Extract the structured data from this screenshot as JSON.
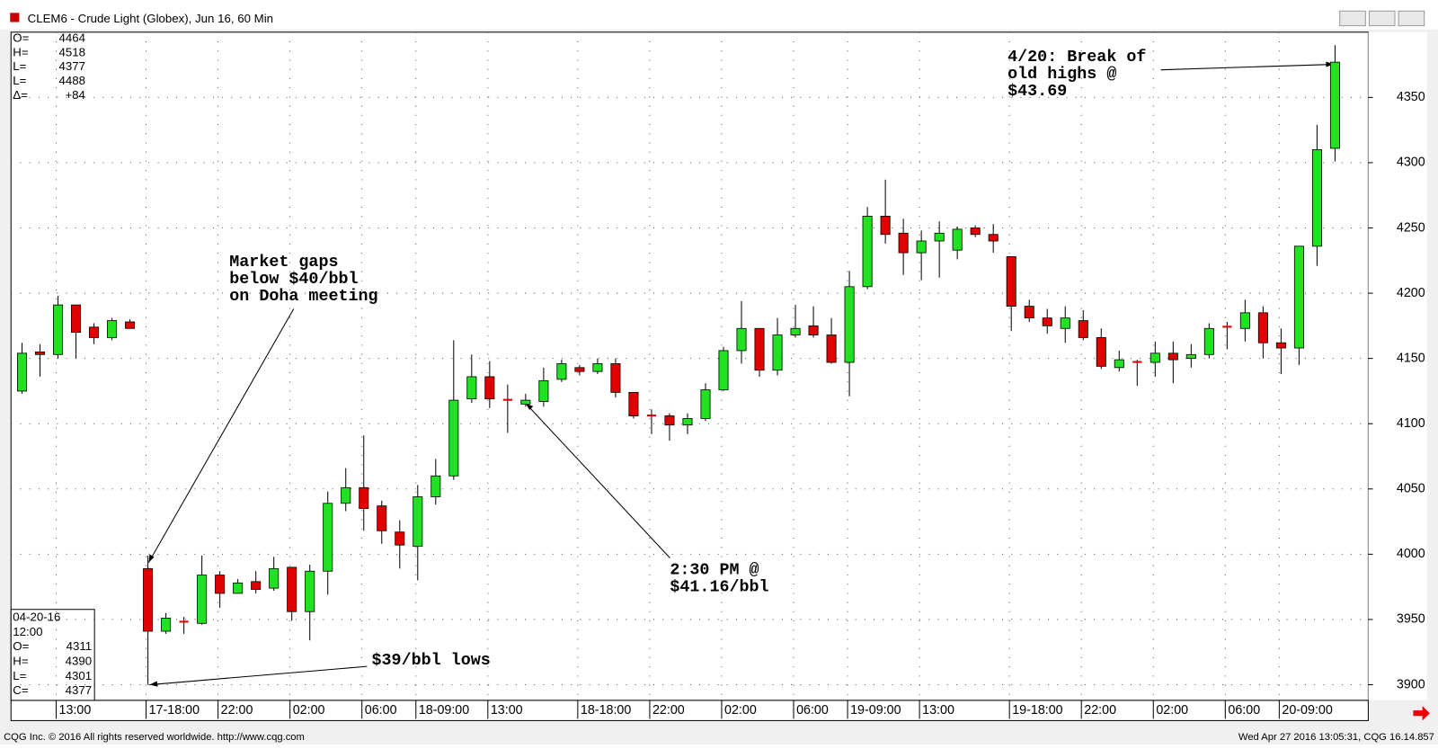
{
  "window": {
    "title": "CLEM6 - Crude Light (Globex), Jun 16, 60 Min"
  },
  "chart_data": {
    "type": "candlestick",
    "categories": [
      null,
      null,
      "13:00",
      null,
      null,
      null,
      null,
      "17-18:00",
      null,
      null,
      null,
      "22:00",
      null,
      null,
      null,
      "02:00",
      null,
      null,
      null,
      "06:00",
      null,
      null,
      "18-09:00",
      null,
      null,
      null,
      "13:00",
      null,
      null,
      null,
      null,
      "18-18:00",
      null,
      null,
      null,
      "22:00",
      null,
      null,
      null,
      "02:00",
      null,
      null,
      null,
      "06:00",
      null,
      null,
      "19-09:00",
      null,
      null,
      null,
      "13:00",
      null,
      null,
      null,
      null,
      "19-18:00",
      null,
      null,
      null,
      "22:00",
      null,
      null,
      null,
      "02:00",
      null,
      null,
      null,
      "06:00",
      null,
      null,
      "20-09:00",
      null,
      null,
      null
    ],
    "open": [
      4125,
      4155,
      4153,
      4191,
      4174,
      4166,
      4178,
      3989,
      3941,
      3949,
      3947,
      3984,
      3970,
      3979,
      3974,
      3990,
      3956,
      3987,
      4039,
      4051,
      4037,
      4017,
      4006,
      4044,
      4060,
      4119,
      4136,
      4119,
      4115,
      4117,
      4134,
      4143,
      4140,
      4146,
      4124,
      4107,
      4106,
      4099,
      4104,
      4126,
      4156,
      4173,
      4141,
      4168,
      4175,
      4168,
      4147,
      4205,
      4259,
      4246,
      4231,
      4240,
      4233,
      4250,
      4245,
      4228,
      4190,
      4181,
      4173,
      4179,
      4166,
      4143,
      4148,
      4147,
      4154,
      4150,
      4153,
      4175,
      4173,
      4185,
      4162,
      4158,
      4236,
      4311
    ],
    "high": [
      4162,
      4161,
      4198,
      4191,
      4177,
      4181,
      4180,
      3999,
      3955,
      3952,
      3999,
      3987,
      3981,
      3987,
      3998,
      3990,
      3992,
      4048,
      4066,
      4091,
      4041,
      4026,
      4053,
      4073,
      4164,
      4153,
      4148,
      4130,
      4123,
      4143,
      4149,
      4145,
      4150,
      4150,
      4124,
      4111,
      4108,
      4108,
      4131,
      4159,
      4194,
      4173,
      4181,
      4191,
      4190,
      4181,
      4217,
      4266,
      4287,
      4257,
      4248,
      4255,
      4251,
      4252,
      4253,
      4228,
      4195,
      4188,
      4190,
      4187,
      4173,
      4156,
      4149,
      4163,
      4163,
      4161,
      4177,
      4178,
      4195,
      4190,
      4173,
      4236,
      4329,
      4390
    ],
    "low": [
      4123,
      4136,
      4150,
      4150,
      4161,
      4164,
      4173,
      3900,
      3939,
      3939,
      3946,
      3959,
      3970,
      3970,
      3972,
      3949,
      3934,
      3969,
      4033,
      4018,
      4008,
      3989,
      3980,
      4038,
      4057,
      4116,
      4112,
      4093,
      4113,
      4113,
      4132,
      4137,
      4138,
      4120,
      4104,
      4092,
      4087,
      4092,
      4102,
      4125,
      4146,
      4136,
      4137,
      4166,
      4166,
      4146,
      4121,
      4203,
      4238,
      4214,
      4210,
      4212,
      4226,
      4243,
      4231,
      4171,
      4178,
      4169,
      4162,
      4164,
      4142,
      4140,
      4129,
      4136,
      4131,
      4143,
      4150,
      4157,
      4163,
      4150,
      4138,
      4145,
      4221,
      4301
    ],
    "close": [
      4154,
      4153,
      4191,
      4170,
      4166,
      4179,
      4173,
      3941,
      3951,
      3948,
      3984,
      3970,
      3978,
      3973,
      3989,
      3956,
      3987,
      4039,
      4051,
      4035,
      4018,
      4007,
      4044,
      4060,
      4118,
      4136,
      4119,
      4118,
      4118,
      4133,
      4146,
      4140,
      4146,
      4124,
      4106,
      4107,
      4099,
      4104,
      4126,
      4156,
      4173,
      4141,
      4168,
      4173,
      4168,
      4147,
      4205,
      4259,
      4245,
      4231,
      4240,
      4246,
      4249,
      4245,
      4240,
      4190,
      4181,
      4175,
      4181,
      4166,
      4144,
      4149,
      4147,
      4154,
      4149,
      4153,
      4173,
      4175,
      4185,
      4162,
      4158,
      4236,
      4310,
      4377
    ],
    "ylim": [
      3888,
      4400
    ],
    "yticks": [
      3900,
      3950,
      4000,
      4050,
      4100,
      4150,
      4200,
      4250,
      4300,
      4350
    ],
    "up_color": "#22e022",
    "down_color": "#e00000",
    "grid": true,
    "annotations": [
      {
        "lines": [
          "Market gaps",
          "below $40/bbl",
          "on Doha meeting"
        ]
      },
      {
        "lines": [
          "$39/bbl lows"
        ]
      },
      {
        "lines": [
          "2:30 PM @",
          "$41.16/bbl"
        ]
      },
      {
        "lines": [
          "4/20: Break of",
          "old highs @",
          "$43.69"
        ]
      }
    ]
  },
  "top_info": [
    [
      "O=",
      "4464"
    ],
    [
      "H=",
      "4518"
    ],
    [
      "L=",
      "4377"
    ],
    [
      "L=",
      "4488"
    ],
    [
      "Δ=",
      "+84"
    ]
  ],
  "cursor_info": {
    "date": "04-20-16",
    "time": "12:00",
    "rows": [
      [
        "O=",
        "4311"
      ],
      [
        "H=",
        "4390"
      ],
      [
        "L=",
        "4301"
      ],
      [
        "C=",
        "4377"
      ]
    ]
  },
  "footer": {
    "left": "CQG Inc. © 2016 All rights reserved worldwide. http://www.cqg.com",
    "right": "Wed Apr 27 2016 13:05:31, CQG 16.14.857"
  }
}
